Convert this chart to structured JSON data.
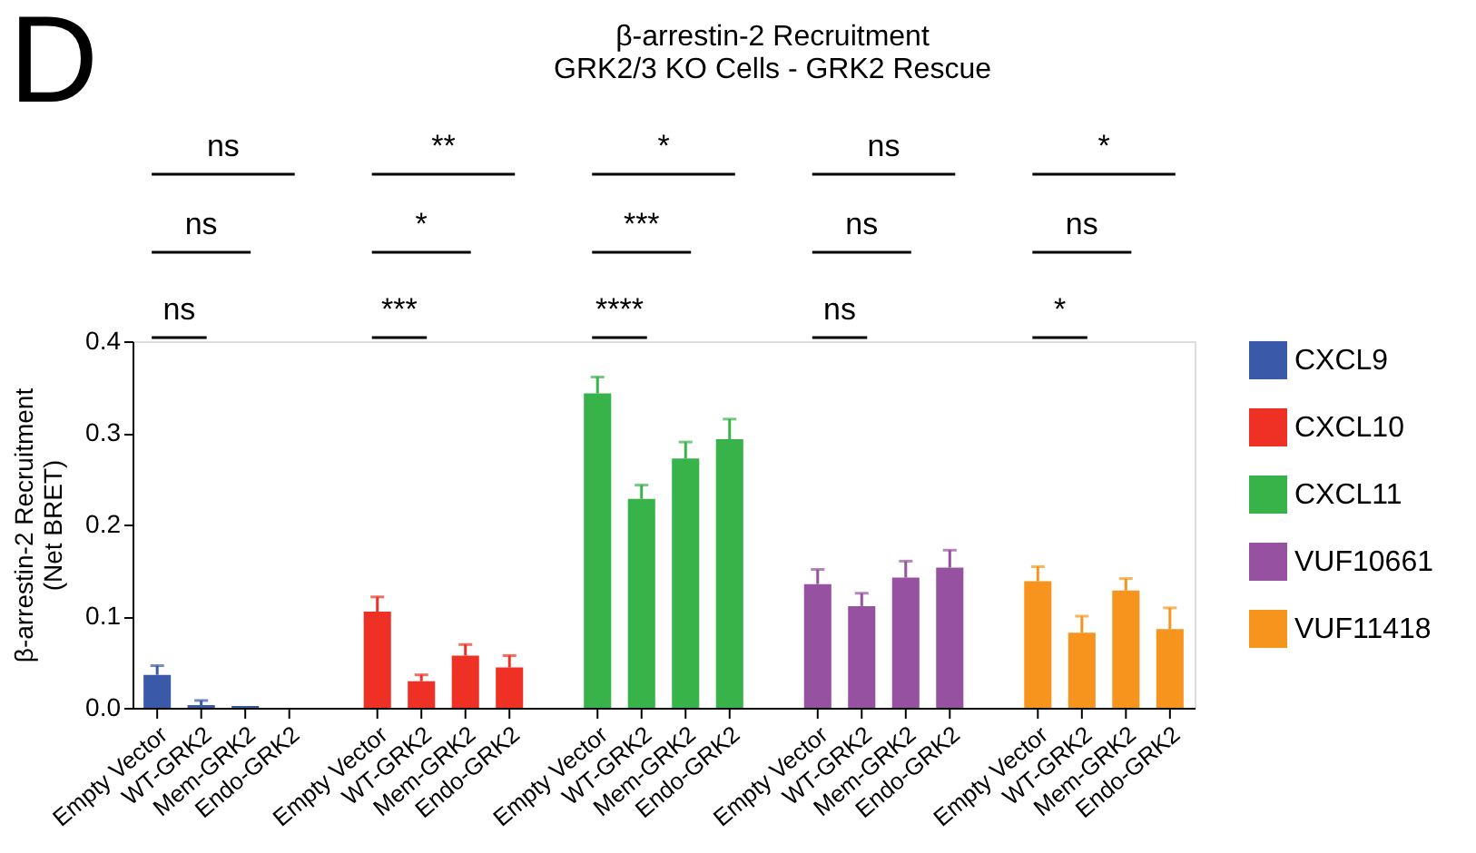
{
  "chart_data": {
    "type": "bar",
    "title": "β-arrestin-2 Recruitment",
    "subtitle": "GRK2/3 KO Cells - GRK2 Rescue",
    "ylabel": "β-arrestin-2 Recruitment\n(Net BRET)",
    "categories": [
      "Empty Vector",
      "WT-GRK2",
      "Mem-GRK2",
      "Endo-GRK2",
      null,
      "Empty Vector",
      "WT-GRK2",
      "Mem-GRK2",
      "Endo-GRK2",
      null,
      "Empty Vector",
      "WT-GRK2",
      "Mem-GRK2",
      "Endo-GRK2",
      null,
      "Empty Vector",
      "WT-GRK2",
      "Mem-GRK2",
      "Endo-GRK2",
      null,
      "Empty Vector",
      "WT-GRK2",
      "Mem-GRK2",
      "Endo-GRK2"
    ],
    "series": [
      {
        "name": "CXCL9",
        "color": "#3a59a8",
        "values": [
          0.036,
          0.003,
          0.002,
          0.0,
          null,
          null,
          null,
          null,
          null,
          null,
          null,
          null,
          null,
          null,
          null,
          null,
          null,
          null,
          null,
          null,
          null,
          null,
          null,
          null
        ],
        "errors": [
          [
            0.036,
            0.046
          ],
          [
            0.003,
            0.008
          ],
          null,
          null,
          null,
          null,
          null,
          null,
          null,
          null,
          null,
          null,
          null,
          null,
          null,
          null,
          null,
          null,
          null,
          null,
          null,
          null,
          null,
          null
        ]
      },
      {
        "name": "CXCL10",
        "color": "#ee3124",
        "values": [
          null,
          null,
          null,
          null,
          null,
          0.105,
          0.029,
          0.057,
          0.044,
          null,
          null,
          null,
          null,
          null,
          null,
          null,
          null,
          null,
          null,
          null,
          null,
          null,
          null,
          null
        ],
        "errors": [
          null,
          null,
          null,
          null,
          null,
          [
            0.105,
            0.121
          ],
          [
            0.029,
            0.036
          ],
          [
            0.057,
            0.069
          ],
          [
            0.044,
            0.057
          ],
          null,
          null,
          null,
          null,
          null,
          null,
          null,
          null,
          null,
          null,
          null,
          null,
          null,
          null,
          null
        ]
      },
      {
        "name": "CXCL11",
        "color": "#37b34a",
        "values": [
          null,
          null,
          null,
          null,
          null,
          null,
          null,
          null,
          null,
          null,
          0.343,
          0.228,
          0.272,
          0.293,
          null,
          null,
          null,
          null,
          null,
          null,
          null,
          null,
          null,
          null
        ],
        "errors": [
          null,
          null,
          null,
          null,
          null,
          null,
          null,
          null,
          null,
          null,
          [
            0.343,
            0.361
          ],
          [
            0.228,
            0.243
          ],
          [
            0.272,
            0.29
          ],
          [
            0.293,
            0.315
          ],
          null,
          null,
          null,
          null,
          null,
          null,
          null,
          null,
          null,
          null
        ]
      },
      {
        "name": "VUF10661",
        "color": "#9651a0",
        "values": [
          null,
          null,
          null,
          null,
          null,
          null,
          null,
          null,
          null,
          null,
          null,
          null,
          null,
          null,
          null,
          0.135,
          0.111,
          0.142,
          0.153,
          null,
          null,
          null,
          null,
          null
        ],
        "errors": [
          null,
          null,
          null,
          null,
          null,
          null,
          null,
          null,
          null,
          null,
          null,
          null,
          null,
          null,
          null,
          [
            0.135,
            0.151
          ],
          [
            0.111,
            0.125
          ],
          [
            0.142,
            0.16
          ],
          [
            0.153,
            0.172
          ],
          null,
          null,
          null,
          null,
          null
        ]
      },
      {
        "name": "VUF11418",
        "color": "#f7941d",
        "values": [
          null,
          null,
          null,
          null,
          null,
          null,
          null,
          null,
          null,
          null,
          null,
          null,
          null,
          null,
          null,
          null,
          null,
          null,
          null,
          null,
          0.138,
          0.082,
          0.128,
          0.086
        ],
        "errors": [
          null,
          null,
          null,
          null,
          null,
          null,
          null,
          null,
          null,
          null,
          null,
          null,
          null,
          null,
          null,
          null,
          null,
          null,
          null,
          null,
          [
            0.138,
            0.154
          ],
          [
            0.082,
            0.1
          ],
          [
            0.128,
            0.141
          ],
          [
            0.086,
            0.109
          ]
        ]
      }
    ],
    "ylim": [
      0,
      0.4
    ],
    "yticks": [
      {
        "value": 0,
        "label": "0.0"
      },
      0.1,
      0.2,
      0.3,
      0.4
    ],
    "grid": false,
    "legend": "top right",
    "annotations": [
      "D",
      "ns",
      "**",
      "*",
      "ns",
      "*",
      "ns",
      "*",
      "***",
      "ns",
      "ns",
      "ns",
      "***",
      "****",
      "ns",
      "*"
    ]
  }
}
